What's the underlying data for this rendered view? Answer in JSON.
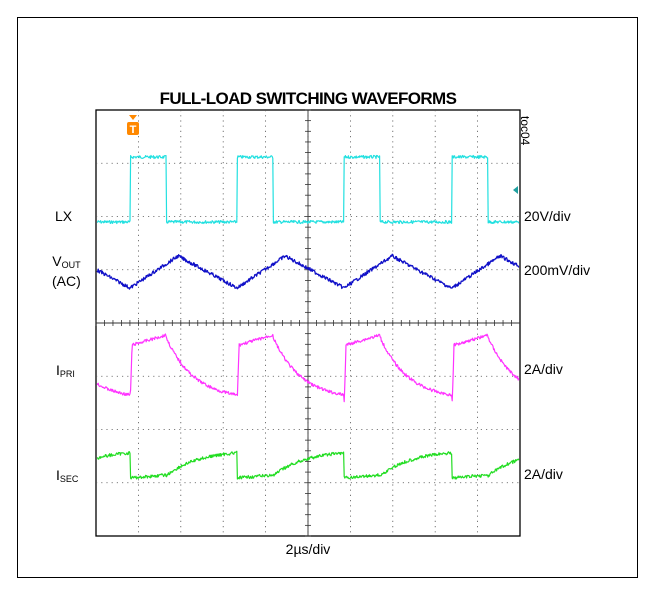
{
  "chart_data": {
    "type": "line",
    "title": "FULL-LOAD SWITCHING WAVEFORMS",
    "figure_id": "toc04",
    "timebase": "2µs/div",
    "trigger_marker": "T",
    "grid": true,
    "divisions": {
      "x": 10,
      "y": 8
    },
    "series": [
      {
        "name": "LX",
        "scale": "20V/div",
        "color": "#22e0e0"
      },
      {
        "name_main": "V",
        "name_sub": "OUT",
        "name_suffix": "(AC)",
        "scale": "200mV/div",
        "color": "#1010c8"
      },
      {
        "name_main": "I",
        "name_sub": "PRI",
        "scale": "2A/div",
        "color": "#ff33ff"
      },
      {
        "name_main": "I",
        "name_sub": "SEC",
        "scale": "2A/div",
        "color": "#22dd22"
      }
    ]
  },
  "colors": {
    "grid": "#555555",
    "trigger": "#ff8800",
    "ground_marker": "#1fa0a0"
  }
}
